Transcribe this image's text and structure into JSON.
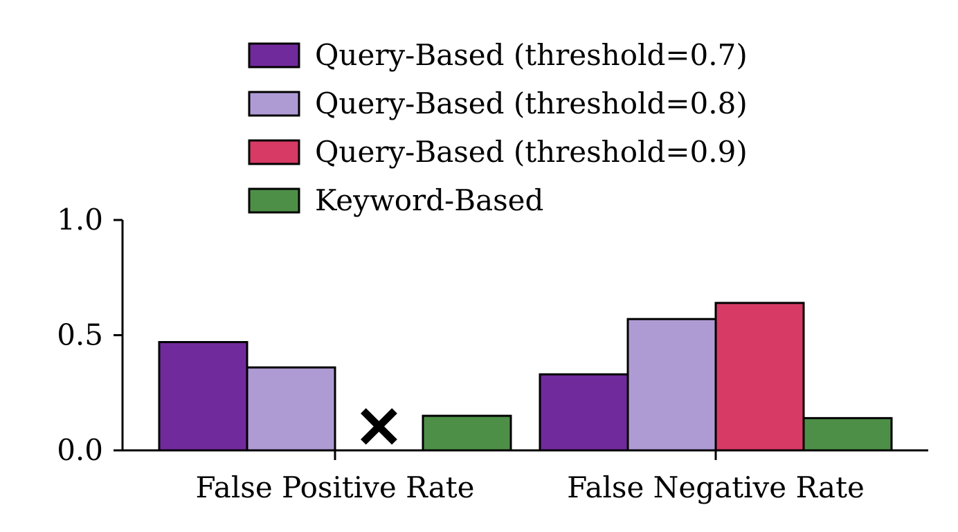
{
  "chart_data": {
    "type": "bar",
    "title": "",
    "xlabel": "",
    "ylabel": "",
    "ylim": [
      0,
      1.0
    ],
    "yticks": [
      "0.0",
      "0.5",
      "1.0"
    ],
    "categories": [
      "False Positive Rate",
      "False Negative Rate"
    ],
    "series": [
      {
        "name": "Query-Based (threshold=0.7)",
        "color": "#712a9c",
        "values": [
          0.47,
          0.33
        ]
      },
      {
        "name": "Query-Based (threshold=0.8)",
        "color": "#af9bd4",
        "values": [
          0.36,
          0.57
        ]
      },
      {
        "name": "Query-Based (threshold=0.9)",
        "color": "#d63a65",
        "values": [
          null,
          0.64
        ]
      },
      {
        "name": "Keyword-Based",
        "color": "#4e8f47",
        "values": [
          0.15,
          0.14
        ]
      }
    ],
    "missing_marker": "✕",
    "grid": false,
    "legend_position": "top-center"
  }
}
